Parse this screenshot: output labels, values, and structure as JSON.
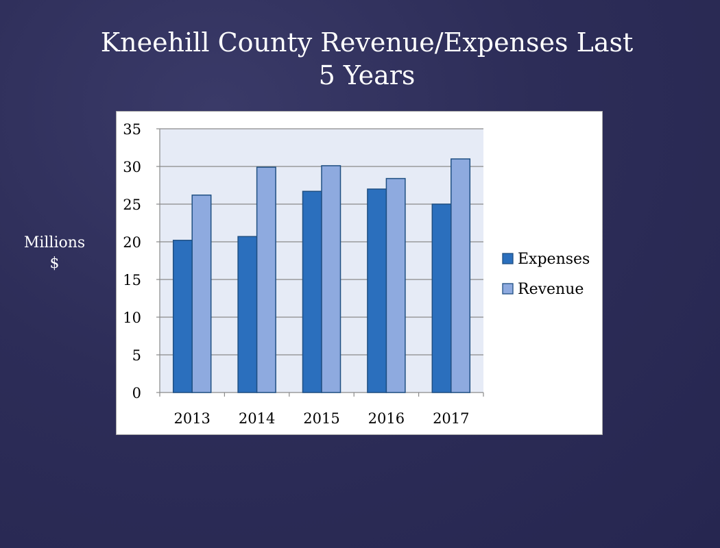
{
  "slide": {
    "title_line1": "Kneehill County Revenue/Expenses Last",
    "title_line2": "5 Years",
    "side_label_line1": "Millions",
    "side_label_line2": "$"
  },
  "chart_data": {
    "type": "bar",
    "categories": [
      "2013",
      "2014",
      "2015",
      "2016",
      "2017"
    ],
    "series": [
      {
        "name": "Expenses",
        "values": [
          20.2,
          20.7,
          26.7,
          27.0,
          25.0
        ],
        "color": "#2b6fbd"
      },
      {
        "name": "Revenue",
        "values": [
          26.2,
          29.9,
          30.1,
          28.4,
          31.0
        ],
        "color": "#8eaadf"
      }
    ],
    "yticks": [
      0,
      5,
      10,
      15,
      20,
      25,
      30,
      35
    ],
    "ylim": [
      0,
      35
    ],
    "grid": true,
    "legend": "right",
    "plot_background": "#e6ebf6",
    "bar_border": "#1f4f82"
  }
}
